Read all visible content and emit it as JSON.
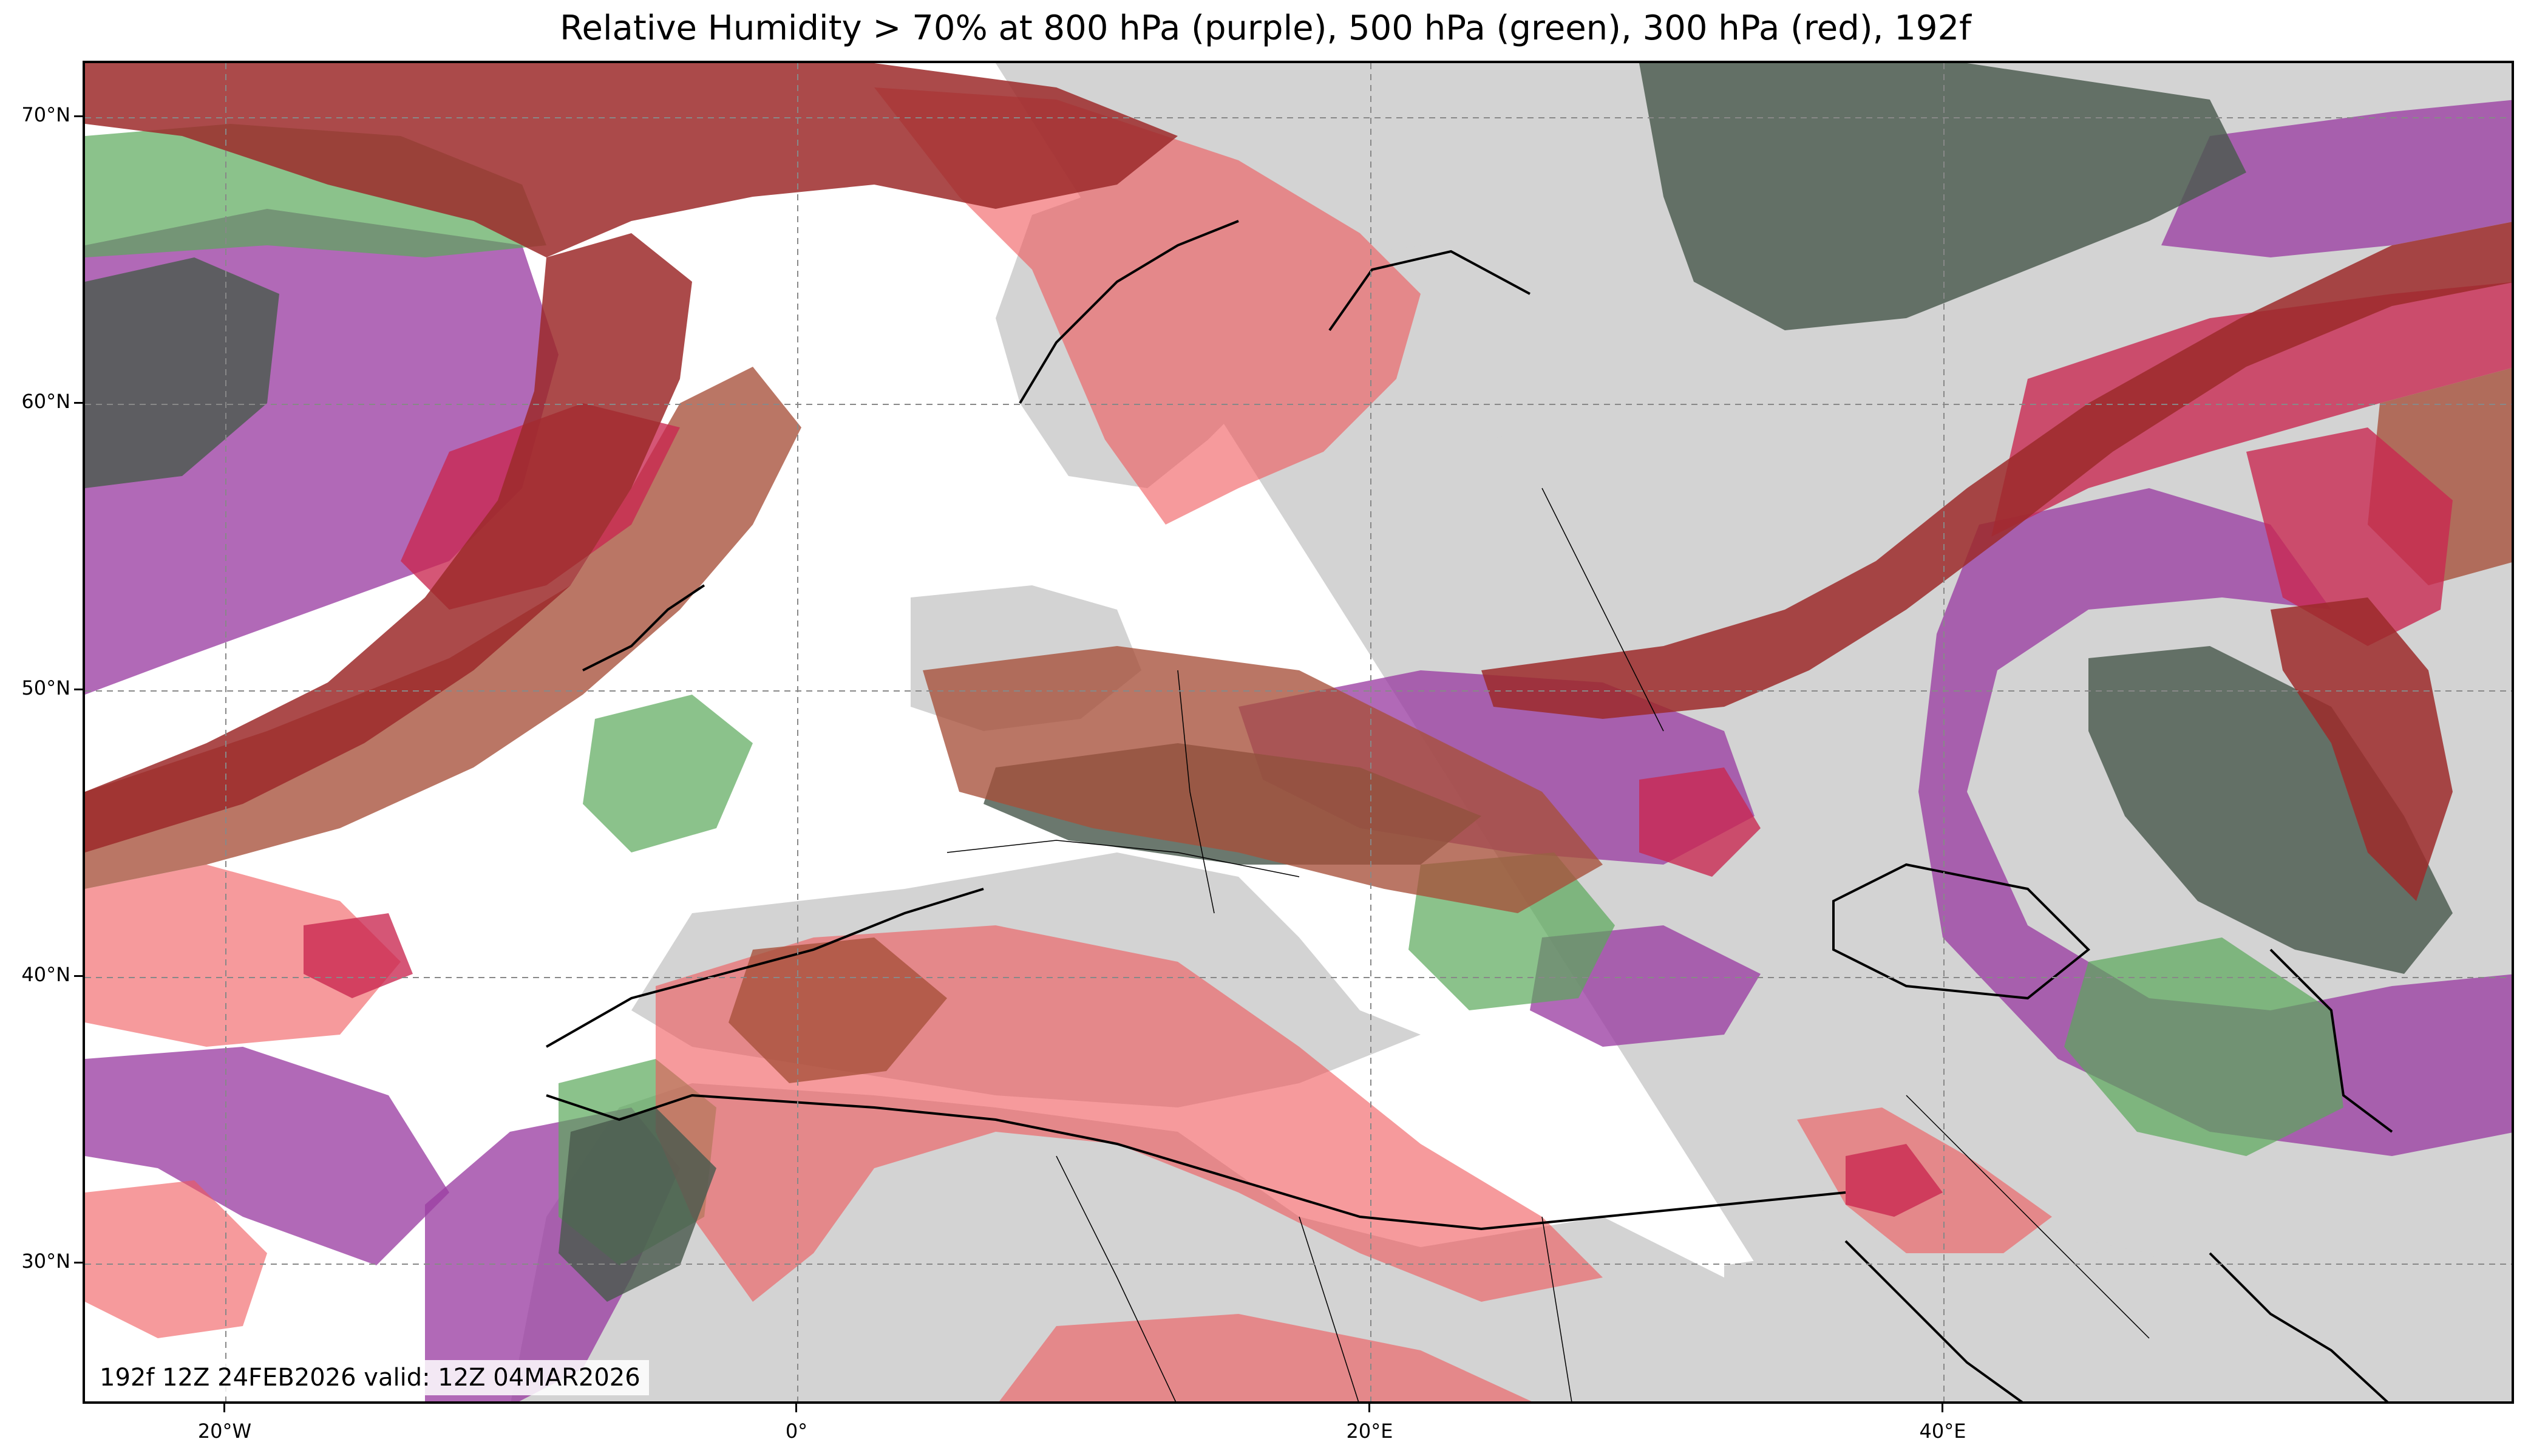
{
  "title": "Relative Humidity > 70% at 800 hPa (purple), 500 hPa (green), 300 hPa (red), 192f",
  "valid_text": "192f 12Z 24FEB2026 valid: 12Z 04MAR2026",
  "lat_labels": [
    "70°N",
    "60°N",
    "50°N",
    "40°N",
    "30°N"
  ],
  "lon_labels": [
    "20°W",
    "0°",
    "20°E",
    "40°E"
  ],
  "layers": {
    "land": "#d3d3d3",
    "ocean": "#ffffff",
    "rh800": "#9b3fa3",
    "rh500": "#5aa85a",
    "rh300": "#f0565a",
    "overlap_dark": "#4b5a4e",
    "overlap_brown": "#a6503a",
    "overlap_crimson": "#c9264f",
    "overlap_darkred": "#9c2a2a"
  }
}
